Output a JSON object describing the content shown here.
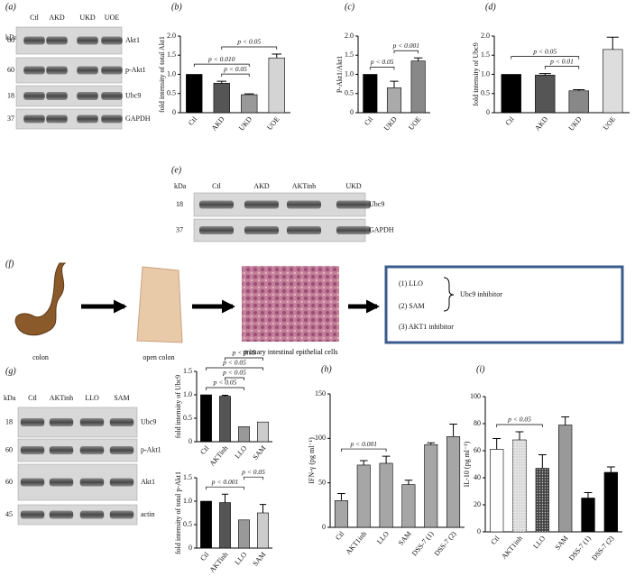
{
  "blots": [
    {
      "label": "(a)",
      "kda": "kDa",
      "lanes": [
        "Ctl",
        "AKD",
        "UKD",
        "UOE"
      ],
      "rows": [
        {
          "marker": "60",
          "name": "Akt1"
        },
        {
          "marker": "60",
          "name": "p-Akt1"
        },
        {
          "marker": "18",
          "name": "Ubc9"
        },
        {
          "marker": "37",
          "name": "GAPDH"
        }
      ]
    },
    {
      "label": "(e)",
      "kda": "kDa",
      "lanes": [
        "Ctl",
        "AKD",
        "AKTinh",
        "UKD"
      ],
      "rows": [
        {
          "marker": "18",
          "name": "Ubc9"
        },
        {
          "marker": "37",
          "name": "GAPDH"
        }
      ]
    },
    {
      "label": "(g)",
      "kda": "kDa",
      "lanes": [
        "Ctl",
        "AKTinh",
        "LLO",
        "SAM"
      ],
      "rows": [
        {
          "marker": "18",
          "name": "Ubc9"
        },
        {
          "marker": "60",
          "name": "p-Akt1"
        },
        {
          "marker": "60",
          "name": "Akt1"
        },
        {
          "marker": "45",
          "name": "actin"
        }
      ]
    }
  ],
  "diagram": {
    "label": "(f)",
    "steps": [
      "colon",
      "open colon",
      "primary intestinal epithelial cells"
    ],
    "box": {
      "items": [
        "(1) LLO",
        "(2) SAM",
        "(3) AKT1 inhibitor"
      ],
      "brace_label": "Ubc9 inhibitor"
    }
  },
  "chart_data": [
    {
      "type": "bar",
      "label": "(b)",
      "y_label": "fold intensity of total Akt1",
      "categories": [
        "Ctl",
        "AKD",
        "UKD",
        "UOE"
      ],
      "values": [
        1.0,
        0.77,
        0.47,
        1.43
      ],
      "errors": [
        0,
        0.05,
        0.02,
        0.1
      ],
      "colors": [
        "#000000",
        "#555555",
        "#999999",
        "#d4d4d4"
      ],
      "ylim": [
        0,
        2.0
      ],
      "yticks": [
        0,
        0.5,
        {
          "value": 1.0,
          "label": "1.0"
        },
        1.5,
        {
          "value": 2.0,
          "label": "2.0"
        }
      ],
      "annotations": [
        {
          "text": "p < 0.05",
          "from": "AKD",
          "to": "UKD"
        },
        {
          "text": "p < 0.010",
          "from": "Ctl",
          "to": "UKD"
        },
        {
          "text": "p < 0.05",
          "from": "AKD",
          "to": "UOE"
        }
      ]
    },
    {
      "type": "bar",
      "label": "(c)",
      "y_label": "P-Akt1/Akt1",
      "categories": [
        "Ctl",
        "UKD",
        "UOE"
      ],
      "values": [
        1.0,
        0.65,
        1.35
      ],
      "errors": [
        0,
        0.17,
        0.08
      ],
      "colors": [
        "#000000",
        "#aaaaaa",
        "#888888"
      ],
      "ylim": [
        0,
        2.0
      ],
      "yticks": [
        0,
        0.5,
        {
          "value": 1.0,
          "label": "1.0"
        },
        1.5,
        {
          "value": 2.0,
          "label": "2.0"
        }
      ],
      "annotations": [
        {
          "text": "p < 0.05",
          "from": "Ctl",
          "to": "UKD"
        },
        {
          "text": "p < 0.001",
          "from": "UKD",
          "to": "UOE"
        }
      ]
    },
    {
      "type": "bar",
      "label": "(d)",
      "y_label": "fold intensity of Ubc9",
      "categories": [
        "Ctl",
        "AKD",
        "UKD",
        "UOE"
      ],
      "values": [
        1.0,
        0.98,
        0.57,
        1.65
      ],
      "errors": [
        0,
        0.04,
        0.03,
        0.32
      ],
      "colors": [
        "#000000",
        "#555555",
        "#888888",
        "#dddddd"
      ],
      "ylim": [
        0,
        2.0
      ],
      "yticks": [
        0,
        0.5,
        {
          "value": 1.0,
          "label": "1.0"
        },
        1.5,
        {
          "value": 2.0,
          "label": "2.0"
        }
      ],
      "annotations": [
        {
          "text": "p < 0.01",
          "from": "AKD",
          "to": "UKD"
        },
        {
          "text": "p < 0.05",
          "from": "Ctl",
          "to": "UKD"
        }
      ]
    },
    {
      "type": "bar",
      "y_label": "fold intensity of Ubc9",
      "categories": [
        "Ctl",
        "AKTinh",
        "LLO",
        "SAM"
      ],
      "values": [
        1.0,
        0.97,
        0.32,
        0.42
      ],
      "errors": [
        0,
        0.02,
        0,
        0
      ],
      "colors": [
        "#000000",
        "#555555",
        "#999999",
        "#cccccc"
      ],
      "ylim": [
        0,
        1.5
      ],
      "yticks": [
        0,
        0.5,
        {
          "value": 1.0,
          "label": "1.0"
        },
        1.5
      ],
      "annotations": [
        {
          "text": "p < 0.05",
          "from": "Ctl",
          "to": "LLO"
        },
        {
          "text": "p < 0.05",
          "from": "AKTinh",
          "to": "LLO"
        },
        {
          "text": "p < 0.05",
          "from": "Ctl",
          "to": "SAM"
        },
        {
          "text": "p < 0.05",
          "from": "AKTinh",
          "to": "SAM"
        }
      ]
    },
    {
      "type": "bar",
      "y_label": "fold intensity of total p-Akt1",
      "categories": [
        "Ctl",
        "AKTinh",
        "LLO",
        "SAM"
      ],
      "values": [
        1.0,
        0.97,
        0.6,
        0.75
      ],
      "errors": [
        0,
        0.18,
        0,
        0.18
      ],
      "colors": [
        "#000000",
        "#555555",
        "#999999",
        "#cccccc"
      ],
      "ylim": [
        0,
        1.5
      ],
      "yticks": [
        0,
        0.5,
        {
          "value": 1.0,
          "label": "1.0"
        },
        1.5
      ],
      "annotations": [
        {
          "text": "p < 0.001",
          "from": "Ctl",
          "to": "LLO"
        },
        {
          "text": "p < 0.05",
          "from": "LLO",
          "to": "SAM"
        }
      ]
    },
    {
      "type": "bar",
      "label": "(h)",
      "y_label": "IFN-γ (pg ml⁻¹)",
      "categories": [
        "Ctl",
        "AKT1inh",
        "LLO",
        "SAM",
        "DSS-7 (1)",
        "DSS-7 (2)"
      ],
      "values": [
        30,
        70,
        72,
        48,
        93,
        102
      ],
      "errors": [
        8,
        5,
        8,
        5,
        2,
        14
      ],
      "colors": [
        "#a6a6a6",
        "#a6a6a6",
        "#a6a6a6",
        "#a6a6a6",
        "#a6a6a6",
        "#a6a6a6"
      ],
      "ylim": [
        0,
        150
      ],
      "yticks": [
        0,
        50,
        100,
        150
      ],
      "annotations": [
        {
          "text": "p < 0.001",
          "from": "Ctl",
          "to": "LLO"
        }
      ]
    },
    {
      "type": "bar",
      "label": "(i)",
      "y_label": "IL-10 (pg ml⁻¹)",
      "categories": [
        "Ctl",
        "AKT1inh",
        "LLO",
        "SAM",
        "DSS-7 (1)",
        "DSS-7 (2)"
      ],
      "values": [
        61,
        68,
        47,
        79,
        25,
        44
      ],
      "errors": [
        8,
        6,
        10,
        6,
        4,
        4
      ],
      "colors": [
        "#ffffff",
        "#d9d9d9",
        "#444444",
        "#999999",
        "#000000",
        "#000000"
      ],
      "hatch": [
        false,
        true,
        true,
        false,
        false,
        false
      ],
      "ylim": [
        0,
        100
      ],
      "yticks": [
        0,
        20,
        40,
        60,
        80,
        100
      ],
      "annotations": [
        {
          "text": "p < 0.05",
          "from": "Ctl",
          "to": "LLO"
        }
      ]
    }
  ]
}
